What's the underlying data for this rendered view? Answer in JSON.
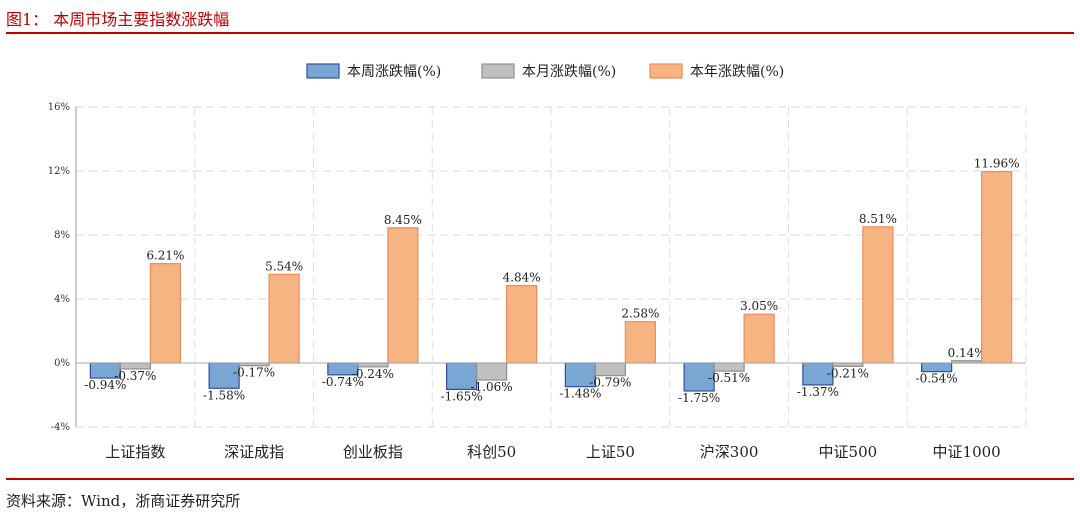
{
  "figure_title": "图1： 本周市场主要指数涨跌幅",
  "source_note": "资料来源：Wind，浙商证券研究所",
  "chart_data": {
    "type": "bar",
    "categories": [
      "上证指数",
      "深证成指",
      "创业板指",
      "科创50",
      "上证50",
      "沪深300",
      "中证500",
      "中证1000"
    ],
    "series": [
      {
        "name": "本周涨跌幅(%)",
        "values": [
          -0.94,
          -1.58,
          -0.74,
          -1.65,
          -1.48,
          -1.75,
          -1.37,
          -0.54
        ],
        "labels": [
          "-0.94%",
          "-1.58%",
          "-0.74%",
          "-1.65%",
          "-1.48%",
          "-1.75%",
          "-1.37%",
          "-0.54%"
        ],
        "fill": "#7aa6d4",
        "stroke": "#2f4f9e"
      },
      {
        "name": "本月涨跌幅(%)",
        "values": [
          -0.37,
          -0.17,
          -0.24,
          -1.06,
          -0.79,
          -0.51,
          -0.21,
          0.14
        ],
        "labels": [
          "-0.37%",
          "-0.17%",
          "-0.24%",
          "-1.06%",
          "-0.79%",
          "-0.51%",
          "-0.21%",
          "0.14%"
        ],
        "fill": "#c0c0c0",
        "stroke": "#8f8f8f"
      },
      {
        "name": "本年涨跌幅(%)",
        "values": [
          6.21,
          5.54,
          8.45,
          4.84,
          2.58,
          3.05,
          8.51,
          11.96
        ],
        "labels": [
          "6.21%",
          "5.54%",
          "8.45%",
          "4.84%",
          "2.58%",
          "3.05%",
          "8.51%",
          "11.96%"
        ],
        "fill": "#f5b482",
        "stroke": "#f08a5d"
      }
    ],
    "ylim": [
      -4,
      16
    ],
    "yticks": [
      -4,
      0,
      4,
      8,
      12,
      16
    ],
    "ytick_labels": [
      "-4%",
      "0%",
      "4%",
      "8%",
      "12%",
      "16%"
    ],
    "grid": true,
    "legend_position": "top-center"
  }
}
